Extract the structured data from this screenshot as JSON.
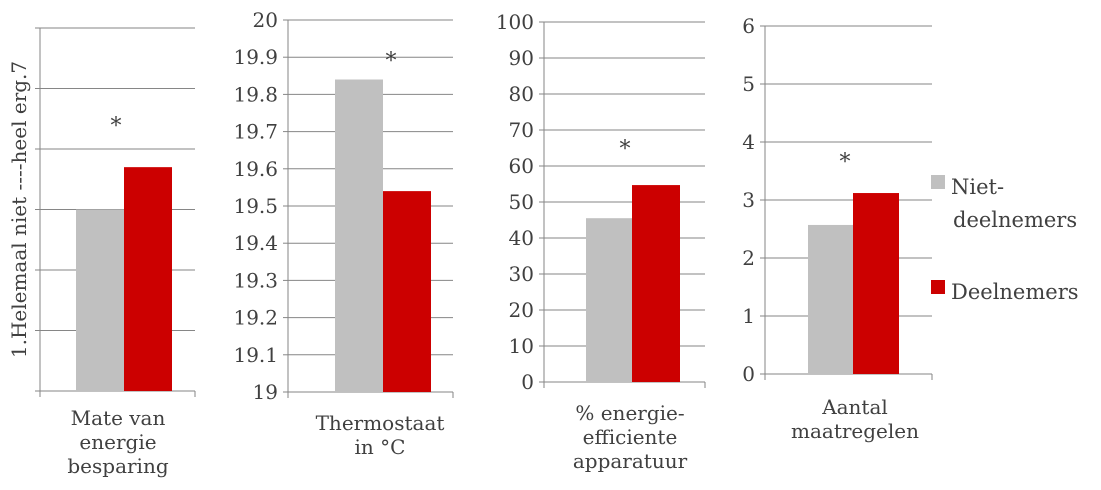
{
  "chart_data": [
    {
      "type": "bar",
      "category_lines": [
        "Mate van",
        "energie",
        "besparing"
      ],
      "ylabel": "1.Helemaal niet ----heel erg.7",
      "ylim": [
        1,
        7
      ],
      "tick_labels": [],
      "significance": "*",
      "series": [
        {
          "name": "Niet-deelnemers",
          "values": [
            4.0
          ]
        },
        {
          "name": "Deelnemers",
          "values": [
            4.7
          ]
        }
      ]
    },
    {
      "type": "bar",
      "category_lines": [
        "Thermostaat",
        "in °C"
      ],
      "ylabel": "",
      "ylim": [
        19,
        20
      ],
      "tick_labels": [
        "19",
        "19.1",
        "19.2",
        "19.3",
        "19.4",
        "19.5",
        "19.6",
        "19.7",
        "19.8",
        "19.9",
        "20"
      ],
      "significance": "*",
      "series": [
        {
          "name": "Niet-deelnemers",
          "values": [
            19.84
          ]
        },
        {
          "name": "Deelnemers",
          "values": [
            19.54
          ]
        }
      ]
    },
    {
      "type": "bar",
      "category_lines": [
        "% energie-",
        "efficiente",
        "apparatuur"
      ],
      "ylabel": "",
      "ylim": [
        0,
        100
      ],
      "tick_labels": [
        "0",
        "10",
        "20",
        "30",
        "40",
        "50",
        "60",
        "70",
        "80",
        "90",
        "100"
      ],
      "significance": "*",
      "series": [
        {
          "name": "Niet-deelnemers",
          "values": [
            45.5
          ]
        },
        {
          "name": "Deelnemers",
          "values": [
            54.7
          ]
        }
      ]
    },
    {
      "type": "bar",
      "category_lines": [
        "Aantal",
        "maatregelen"
      ],
      "ylabel": "",
      "ylim": [
        0,
        6
      ],
      "tick_labels": [
        "0",
        "1",
        "2",
        "3",
        "4",
        "5",
        "6"
      ],
      "significance": "*",
      "series": [
        {
          "name": "Niet-deelnemers",
          "values": [
            2.57
          ]
        },
        {
          "name": "Deelnemers",
          "values": [
            3.12
          ]
        }
      ]
    }
  ],
  "legend": {
    "position": "right",
    "items": [
      {
        "lines": [
          "Niet-",
          "deelnemers"
        ],
        "color": "#c0c0c0"
      },
      {
        "lines": [
          "Deelnemers"
        ],
        "color": "#cc0000"
      }
    ]
  },
  "colors": {
    "niet_deelnemers": "#c0c0c0",
    "deelnemers": "#cc0000",
    "axis": "#868686",
    "text": "#404040"
  }
}
